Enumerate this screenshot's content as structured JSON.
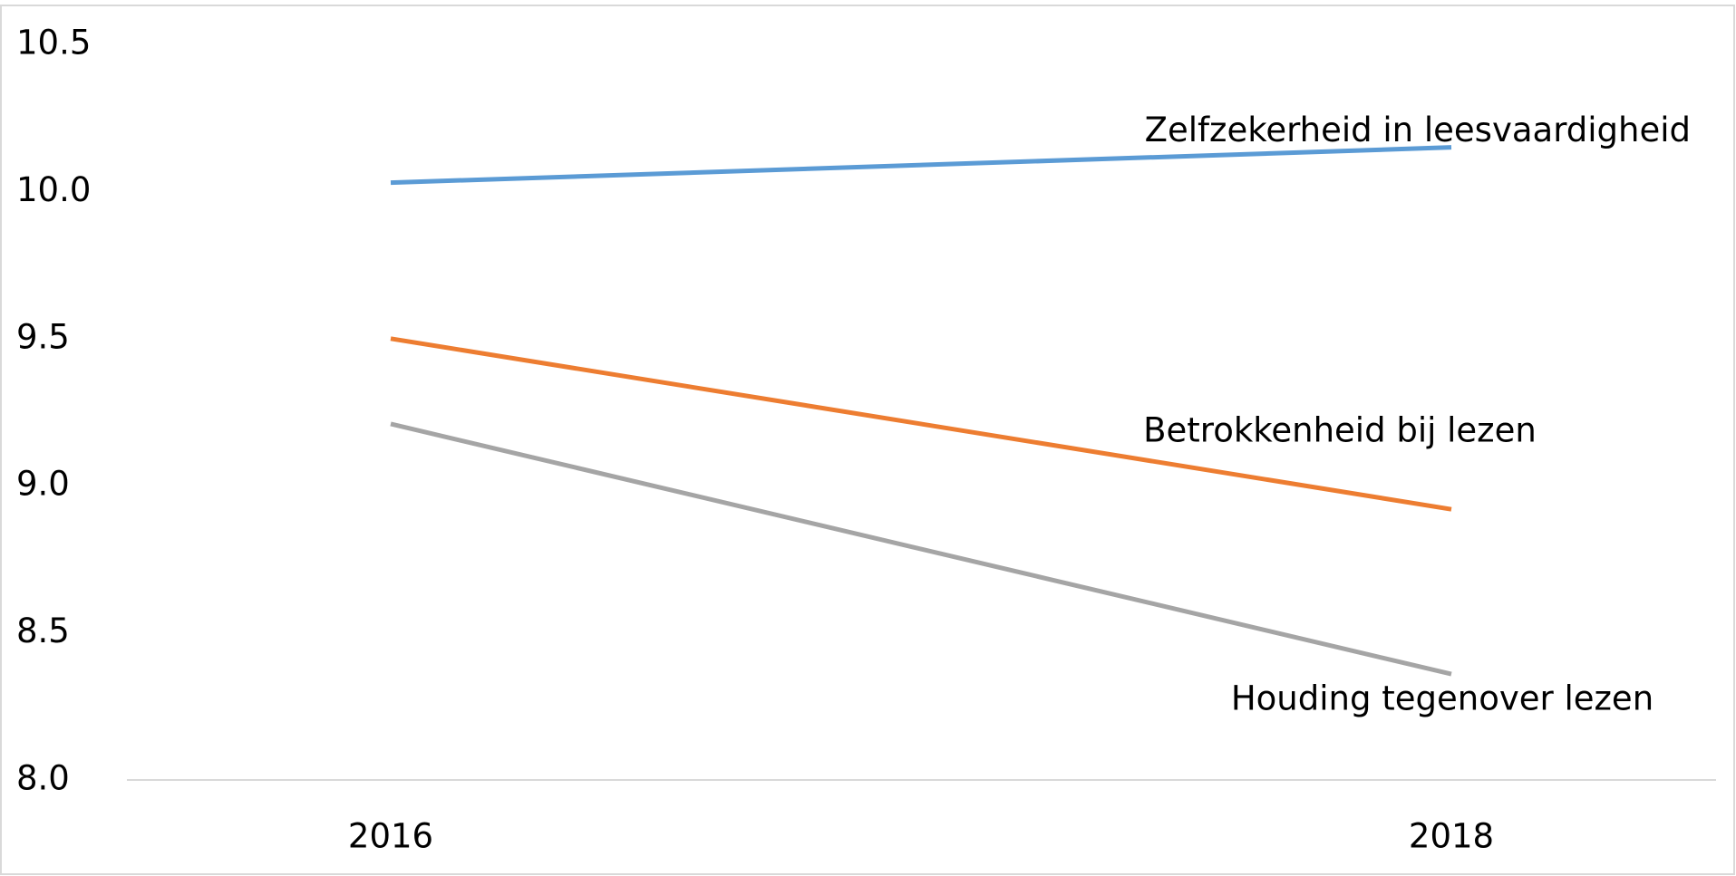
{
  "chart_data": {
    "type": "line",
    "categories": [
      "2016",
      "2018"
    ],
    "series": [
      {
        "name": "Zelfzekerheid in leesvaardigheid",
        "color": "#5b9bd5",
        "values": [
          10.03,
          10.15
        ]
      },
      {
        "name": "Betrokkenheid bij lezen",
        "color": "#ed7d31",
        "values": [
          9.5,
          8.92
        ]
      },
      {
        "name": "Houding tegenover lezen",
        "color": "#a5a5a5",
        "values": [
          9.21,
          8.36
        ]
      }
    ],
    "ylim": [
      8.0,
      10.5
    ],
    "yticks": [
      {
        "value": 8.0,
        "label": "8.0"
      },
      8.5,
      {
        "value": 9.0,
        "label": "9.0"
      },
      9.5,
      {
        "value": 10.0,
        "label": "10.0"
      },
      10.5
    ],
    "grid": false
  }
}
